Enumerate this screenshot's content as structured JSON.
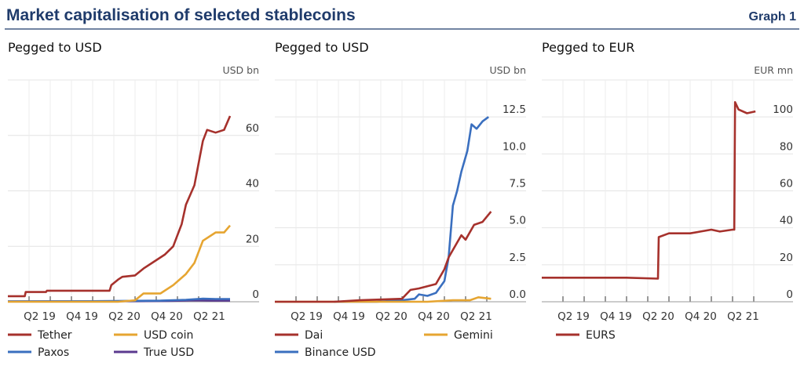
{
  "header": {
    "title": "Market capitalisation of selected stablecoins",
    "graph_label": "Graph 1"
  },
  "chart_data": [
    {
      "type": "line",
      "title": "Pegged to USD",
      "ylabel": "USD bn",
      "ylim": [
        0,
        80
      ],
      "yticks": [
        0,
        20,
        40,
        60
      ],
      "ytick_labels": [
        "0",
        "20",
        "40",
        "60"
      ],
      "xlim": [
        2019.0,
        2021.75
      ],
      "xtick_labels": [
        "Q2 19",
        "Q4 19",
        "Q2 20",
        "Q4 20",
        "Q2 21"
      ],
      "grid": true,
      "series": [
        {
          "name": "Tether",
          "color": "#a6312c",
          "x": [
            2019.0,
            2019.2,
            2019.21,
            2019.45,
            2019.46,
            2020.2,
            2020.22,
            2020.3,
            2020.35,
            2020.5,
            2020.6,
            2020.7,
            2020.85,
            2020.95,
            2021.0,
            2021.05,
            2021.1,
            2021.2,
            2021.3,
            2021.35,
            2021.45,
            2021.55,
            2021.62
          ],
          "y": [
            2,
            2,
            3.5,
            3.5,
            4,
            4,
            6,
            8,
            9,
            9.5,
            12,
            14,
            17,
            20,
            24,
            28,
            35,
            42,
            58,
            62,
            61,
            62,
            67
          ]
        },
        {
          "name": "USD coin",
          "color": "#e6a531",
          "x": [
            2019.0,
            2020.3,
            2020.5,
            2020.6,
            2020.8,
            2020.95,
            2021.1,
            2021.2,
            2021.25,
            2021.3,
            2021.45,
            2021.55,
            2021.62
          ],
          "y": [
            0,
            0,
            0.5,
            3,
            3,
            6,
            10,
            14,
            18,
            22,
            25,
            25,
            27.5
          ]
        },
        {
          "name": "Paxos",
          "color": "#3a6fbf",
          "x": [
            2019.0,
            2020.0,
            2020.8,
            2021.1,
            2021.3,
            2021.45,
            2021.62
          ],
          "y": [
            0.1,
            0.2,
            0.4,
            0.7,
            1.1,
            1.0,
            1.0
          ]
        },
        {
          "name": "True USD",
          "color": "#5b3a8f",
          "x": [
            2019.0,
            2020.5,
            2020.9,
            2021.2,
            2021.4,
            2021.62
          ],
          "y": [
            0.1,
            0.2,
            0.3,
            0.5,
            0.4,
            0.4
          ]
        }
      ],
      "legend": "bottom"
    },
    {
      "type": "line",
      "title": "Pegged to USD",
      "ylabel": "USD bn",
      "ylim": [
        0,
        15
      ],
      "yticks": [
        0,
        2.5,
        5,
        7.5,
        10,
        12.5
      ],
      "ytick_labels": [
        "0.0",
        "2.5",
        "5.0",
        "7.5",
        "10.0",
        "12.5"
      ],
      "xlim": [
        2019.0,
        2021.75
      ],
      "xtick_labels": [
        "Q2 19",
        "Q4 19",
        "Q2 20",
        "Q4 20",
        "Q2 21"
      ],
      "grid": true,
      "series": [
        {
          "name": "Dai",
          "color": "#a6312c",
          "x": [
            2019.0,
            2019.7,
            2020.0,
            2020.5,
            2020.6,
            2020.7,
            2020.9,
            2021.0,
            2021.05,
            2021.15,
            2021.2,
            2021.25,
            2021.35,
            2021.45,
            2021.55
          ],
          "y": [
            0,
            0,
            0.1,
            0.2,
            0.8,
            0.9,
            1.2,
            2.2,
            3.0,
            4.0,
            4.5,
            4.2,
            5.2,
            5.4,
            6.1
          ]
        },
        {
          "name": "Gemini",
          "color": "#e6a531",
          "x": [
            2019.0,
            2020.8,
            2021.1,
            2021.3,
            2021.4,
            2021.55
          ],
          "y": [
            0,
            0,
            0.1,
            0.1,
            0.3,
            0.2
          ]
        },
        {
          "name": "Binance USD",
          "color": "#3a6fbf",
          "x": [
            2019.7,
            2020.2,
            2020.5,
            2020.65,
            2020.7,
            2020.8,
            2020.9,
            2021.0,
            2021.05,
            2021.1,
            2021.15,
            2021.2,
            2021.27,
            2021.32,
            2021.38,
            2021.45,
            2021.52
          ],
          "y": [
            0,
            0,
            0.1,
            0.2,
            0.5,
            0.4,
            0.6,
            1.4,
            3,
            6.5,
            7.5,
            8.8,
            10.2,
            12,
            11.7,
            12.2,
            12.5
          ]
        }
      ],
      "legend": "bottom"
    },
    {
      "type": "line",
      "title": "Pegged to EUR",
      "ylabel": "EUR mn",
      "ylim": [
        0,
        120
      ],
      "yticks": [
        0,
        20,
        40,
        60,
        80,
        100
      ],
      "ytick_labels": [
        "0",
        "20",
        "40",
        "60",
        "80",
        "100"
      ],
      "xlim": [
        2019.0,
        2021.75
      ],
      "xtick_labels": [
        "Q2 19",
        "Q4 19",
        "Q2 20",
        "Q4 20",
        "Q2 21"
      ],
      "grid": true,
      "series": [
        {
          "name": "EURS",
          "color": "#a6312c",
          "x": [
            2019.0,
            2019.5,
            2020.0,
            2020.37,
            2020.38,
            2020.5,
            2020.75,
            2021.0,
            2021.1,
            2021.25,
            2021.27,
            2021.28,
            2021.32,
            2021.42,
            2021.52
          ],
          "y": [
            13,
            13,
            13,
            12.5,
            35,
            37,
            37,
            39,
            38,
            39,
            39,
            108,
            104,
            102,
            103
          ]
        }
      ],
      "legend": "bottom"
    }
  ]
}
